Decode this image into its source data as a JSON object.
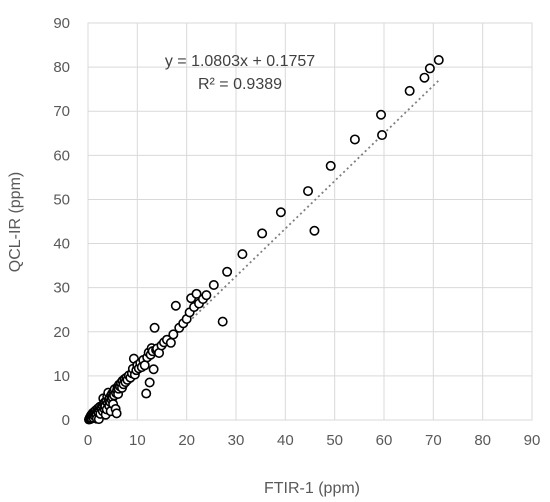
{
  "chart_data": {
    "type": "scatter",
    "xlabel": "FTIR-1 (ppm)",
    "ylabel": "QCL-IR (ppm)",
    "xlim": [
      0,
      90
    ],
    "ylim": [
      0,
      90
    ],
    "x_ticks": [
      "0",
      "10",
      "20",
      "30",
      "40",
      "50",
      "60",
      "70",
      "80",
      "90"
    ],
    "y_ticks": [
      "0",
      "10",
      "20",
      "30",
      "40",
      "50",
      "60",
      "70",
      "80",
      "90"
    ],
    "grid": true,
    "annotations": {
      "equation": "y = 1.0803x + 0.1757",
      "r_squared": "R² = 0.9389"
    },
    "trendline": {
      "slope": 1.0803,
      "intercept": 0.1757,
      "x_range": [
        0,
        71
      ],
      "style": "dotted"
    },
    "marker": "open-circle",
    "colors": {
      "marker": "#000000",
      "trendline": "#7f7f7f",
      "grid": "#d9d9d9",
      "text": "#595959"
    },
    "series": [
      {
        "points": [
          [
            0.2,
            0.1
          ],
          [
            0.3,
            0.3
          ],
          [
            0.4,
            0.6
          ],
          [
            0.5,
            0.2
          ],
          [
            0.6,
            1.0
          ],
          [
            0.7,
            0.4
          ],
          [
            0.8,
            1.3
          ],
          [
            0.9,
            0.8
          ],
          [
            1.0,
            1.6
          ],
          [
            1.1,
            0.5
          ],
          [
            1.2,
            1.1
          ],
          [
            1.3,
            1.9
          ],
          [
            1.4,
            0.9
          ],
          [
            1.5,
            1.5
          ],
          [
            1.6,
            2.2
          ],
          [
            1.7,
            1.2
          ],
          [
            1.8,
            0.3
          ],
          [
            1.9,
            2.0
          ],
          [
            2.0,
            2.6
          ],
          [
            2.1,
            1.7
          ],
          [
            2.2,
            0.2
          ],
          [
            2.3,
            2.4
          ],
          [
            2.4,
            3.0
          ],
          [
            2.5,
            1.4
          ],
          [
            2.7,
            2.8
          ],
          [
            2.9,
            3.3
          ],
          [
            3.0,
            2.0
          ],
          [
            3.1,
            4.9
          ],
          [
            3.2,
            3.6
          ],
          [
            3.3,
            2.6
          ],
          [
            3.4,
            4.0
          ],
          [
            3.5,
            3.1
          ],
          [
            3.6,
            1.2
          ],
          [
            3.7,
            4.3
          ],
          [
            3.8,
            2.4
          ],
          [
            3.9,
            5.3
          ],
          [
            4.0,
            3.8
          ],
          [
            4.1,
            6.2
          ],
          [
            4.2,
            4.6
          ],
          [
            4.3,
            3.2
          ],
          [
            4.4,
            5.0
          ],
          [
            4.5,
            4.1
          ],
          [
            4.6,
            2.0
          ],
          [
            4.7,
            5.6
          ],
          [
            4.8,
            4.6
          ],
          [
            4.9,
            6.0
          ],
          [
            5.0,
            5.1
          ],
          [
            5.1,
            3.6
          ],
          [
            5.2,
            6.4
          ],
          [
            5.3,
            5.6
          ],
          [
            5.4,
            7.0
          ],
          [
            5.6,
            2.5
          ],
          [
            5.7,
            6.1
          ],
          [
            5.8,
            1.5
          ],
          [
            5.9,
            6.8
          ],
          [
            6.0,
            7.5
          ],
          [
            6.1,
            5.9
          ],
          [
            6.2,
            7.1
          ],
          [
            6.3,
            8.0
          ],
          [
            6.5,
            7.6
          ],
          [
            6.7,
            8.4
          ],
          [
            6.9,
            7.3
          ],
          [
            7.0,
            8.9
          ],
          [
            7.2,
            8.1
          ],
          [
            7.4,
            9.3
          ],
          [
            7.6,
            8.6
          ],
          [
            7.8,
            9.6
          ],
          [
            8.0,
            9.1
          ],
          [
            8.3,
            10.1
          ],
          [
            8.6,
            9.6
          ],
          [
            8.9,
            10.6
          ],
          [
            9.1,
            11.6
          ],
          [
            9.3,
            13.9
          ],
          [
            9.5,
            10.3
          ],
          [
            9.8,
            11.3
          ],
          [
            10.0,
            12.4
          ],
          [
            10.3,
            11.7
          ],
          [
            10.6,
            12.9
          ],
          [
            10.9,
            12.0
          ],
          [
            11.2,
            13.6
          ],
          [
            11.5,
            12.4
          ],
          [
            11.8,
            6.0
          ],
          [
            12.0,
            14.2
          ],
          [
            12.3,
            15.3
          ],
          [
            12.5,
            8.5
          ],
          [
            12.7,
            14.8
          ],
          [
            12.9,
            16.3
          ],
          [
            13.1,
            15.6
          ],
          [
            13.3,
            11.5
          ],
          [
            13.5,
            20.9
          ],
          [
            13.8,
            15.9
          ],
          [
            14.0,
            16.2
          ],
          [
            14.4,
            15.2
          ],
          [
            14.9,
            16.9
          ],
          [
            15.4,
            17.6
          ],
          [
            16.0,
            18.2
          ],
          [
            16.8,
            17.5
          ],
          [
            17.3,
            19.4
          ],
          [
            17.8,
            25.9
          ],
          [
            18.5,
            20.9
          ],
          [
            19.3,
            21.9
          ],
          [
            20.0,
            22.9
          ],
          [
            20.6,
            24.4
          ],
          [
            20.9,
            27.6
          ],
          [
            21.5,
            25.6
          ],
          [
            22.0,
            28.6
          ],
          [
            22.5,
            26.4
          ],
          [
            23.3,
            27.4
          ],
          [
            24.0,
            28.3
          ],
          [
            25.5,
            30.6
          ],
          [
            27.3,
            22.3
          ],
          [
            28.2,
            33.6
          ],
          [
            31.3,
            37.6
          ],
          [
            35.3,
            42.3
          ],
          [
            39.1,
            47.1
          ],
          [
            44.6,
            51.9
          ],
          [
            45.9,
            42.9
          ],
          [
            49.2,
            57.6
          ],
          [
            54.1,
            63.6
          ],
          [
            59.4,
            69.2
          ],
          [
            59.6,
            64.6
          ],
          [
            65.2,
            74.6
          ],
          [
            68.2,
            77.6
          ],
          [
            69.3,
            79.7
          ],
          [
            71.1,
            81.6
          ]
        ]
      }
    ]
  }
}
